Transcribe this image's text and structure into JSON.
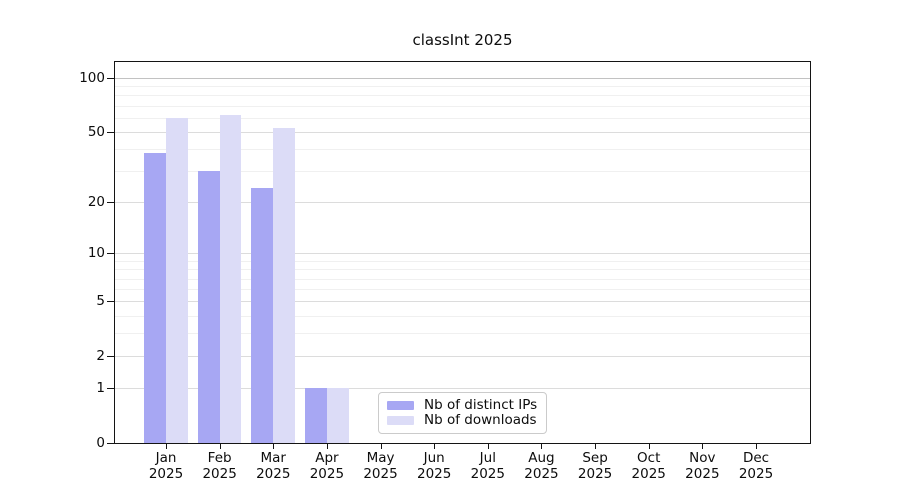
{
  "chart_data": {
    "type": "bar",
    "title": "classInt 2025",
    "categories": [
      "Jan",
      "Feb",
      "Mar",
      "Apr",
      "May",
      "Jun",
      "Jul",
      "Aug",
      "Sep",
      "Oct",
      "Nov",
      "Dec"
    ],
    "category_year": "2025",
    "series": [
      {
        "name": "Nb of distinct IPs",
        "color": "#a7a7f3",
        "values": [
          38,
          30,
          24,
          1,
          0,
          0,
          0,
          0,
          0,
          0,
          0,
          0
        ]
      },
      {
        "name": "Nb of downloads",
        "color": "#dcdcf7",
        "values": [
          60,
          62,
          53,
          1,
          0,
          0,
          0,
          0,
          0,
          0,
          0,
          0
        ]
      }
    ],
    "y_axis": {
      "scale": "log1p",
      "ticks": [
        0,
        1,
        2,
        5,
        10,
        20,
        50,
        100
      ],
      "minor_ticks": [
        3,
        4,
        6,
        7,
        8,
        9,
        30,
        40,
        60,
        70,
        80,
        90
      ],
      "ylim": [
        0,
        123
      ]
    },
    "xlabel": "",
    "ylabel": "",
    "grid": true,
    "legend_position": "lower center"
  },
  "colors": {
    "minor_grid": "#f0f0f0",
    "major_grid": "#dcdcdc",
    "top_grid": "#c2c2c2",
    "spine": "#141414",
    "text": "#0d0d0d"
  }
}
